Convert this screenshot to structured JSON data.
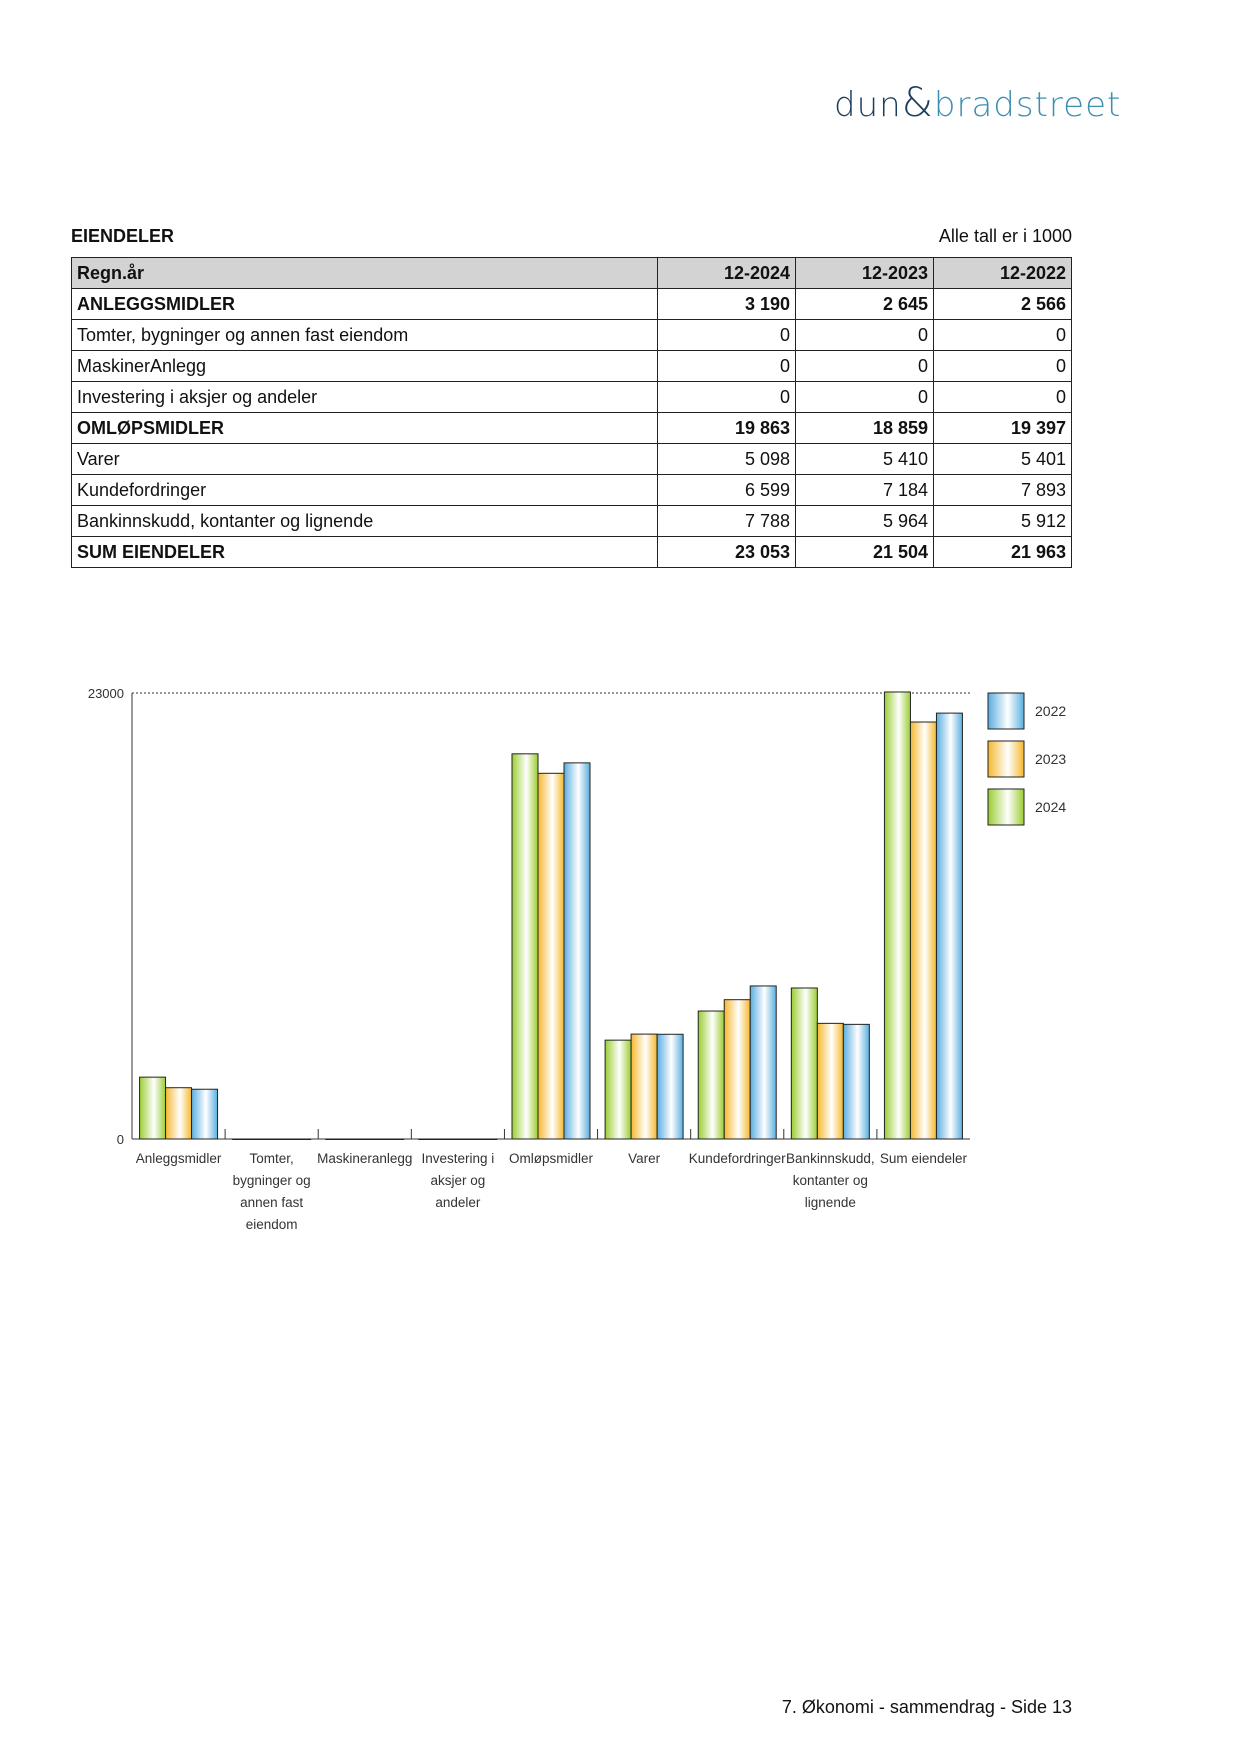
{
  "logo": {
    "part1": "dun",
    "amp": "&",
    "part2": "bradstreet"
  },
  "section_title": "EIENDELER",
  "unit_note": "Alle tall er i 1000",
  "table": {
    "headers": [
      "Regn.år",
      "12-2024",
      "12-2023",
      "12-2022"
    ],
    "rows": [
      {
        "label": "ANLEGGSMIDLER",
        "values": [
          "3 190",
          "2 645",
          "2 566"
        ],
        "bold": true
      },
      {
        "label": "Tomter, bygninger og annen fast eiendom",
        "values": [
          "0",
          "0",
          "0"
        ],
        "bold": false
      },
      {
        "label": "MaskinerAnlegg",
        "values": [
          "0",
          "0",
          "0"
        ],
        "bold": false
      },
      {
        "label": "Investering i aksjer og andeler",
        "values": [
          "0",
          "0",
          "0"
        ],
        "bold": false
      },
      {
        "label": "OMLØPSMIDLER",
        "values": [
          "19 863",
          "18 859",
          "19 397"
        ],
        "bold": true
      },
      {
        "label": "Varer",
        "values": [
          "5 098",
          "5 410",
          "5 401"
        ],
        "bold": false
      },
      {
        "label": "Kundefordringer",
        "values": [
          "6 599",
          "7 184",
          "7 893"
        ],
        "bold": false
      },
      {
        "label": "Bankinnskudd, kontanter og lignende",
        "values": [
          "7 788",
          "5 964",
          "5 912"
        ],
        "bold": false
      },
      {
        "label": "SUM EIENDELER",
        "values": [
          "23 053",
          "21 504",
          "21 963"
        ],
        "bold": true
      }
    ]
  },
  "chart_data": {
    "type": "bar",
    "categories": [
      [
        "Anleggsmidler"
      ],
      [
        "Tomter,",
        "bygninger og",
        "annen fast",
        "eiendom"
      ],
      [
        "Maskineranlegg"
      ],
      [
        "Investering i",
        "aksjer og",
        "andeler"
      ],
      [
        "Omløpsmidler"
      ],
      [
        "Varer"
      ],
      [
        "Kundefordringer"
      ],
      [
        "Bankinnskudd,",
        "kontanter og",
        "lignende"
      ],
      [
        "Sum eiendeler"
      ]
    ],
    "series": [
      {
        "name": "2024",
        "color": "#9acd32",
        "values": [
          3190,
          0,
          0,
          0,
          19863,
          5098,
          6599,
          7788,
          23053
        ]
      },
      {
        "name": "2023",
        "color": "#f5b82e",
        "values": [
          2645,
          0,
          0,
          0,
          18859,
          5410,
          7184,
          5964,
          21504
        ]
      },
      {
        "name": "2022",
        "color": "#5aaee0",
        "values": [
          2566,
          0,
          0,
          0,
          19397,
          5401,
          7893,
          5912,
          21963
        ]
      }
    ],
    "ylim": [
      0,
      23000
    ],
    "yticks": [
      "0",
      "23000"
    ],
    "legend_order": [
      "2022",
      "2023",
      "2024"
    ],
    "legend_position": "right",
    "grid": "dotted line at max"
  },
  "footer": "7. Økonomi - sammendrag - Side 13"
}
